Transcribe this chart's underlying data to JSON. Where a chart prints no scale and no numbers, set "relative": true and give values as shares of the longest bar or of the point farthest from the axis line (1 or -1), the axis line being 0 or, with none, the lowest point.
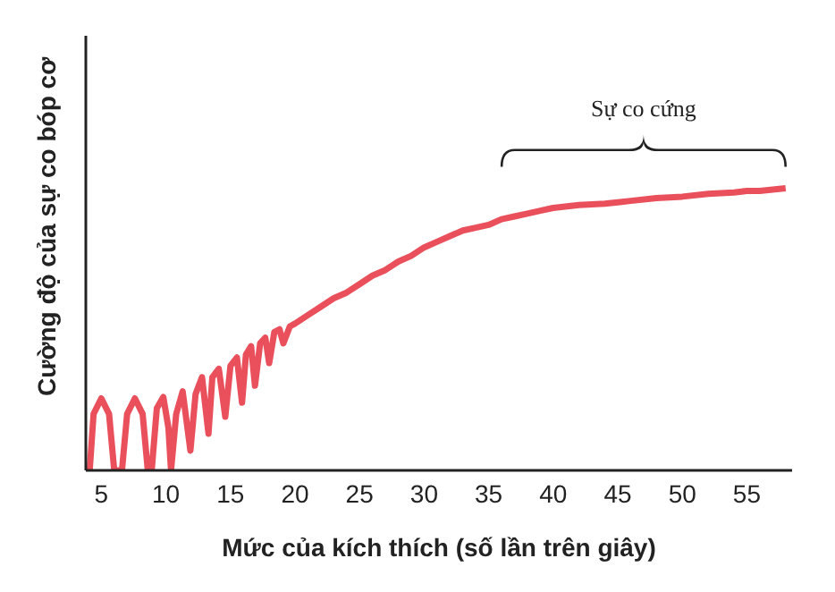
{
  "chart_data": {
    "type": "line",
    "relative": true,
    "xlabel": "Mức của kích thích (số lần trên giây)",
    "ylabel": "Cường độ của sự co bóp cơ",
    "annotations": [
      {
        "text": "Sự co cứng",
        "x": 47,
        "y": 1
      }
    ],
    "xlim": [
      3.8,
      58.5
    ],
    "xticks": [
      5,
      10,
      15,
      20,
      25,
      30,
      35,
      40,
      45,
      50,
      55
    ],
    "marker": "none",
    "line_style": "solid",
    "series": [
      {
        "color": "#e9505c",
        "x": [
          4.1,
          4.4,
          5.0,
          5.6,
          6.0,
          6.6,
          7.0,
          7.6,
          8.2,
          8.6,
          8.9,
          9.3,
          9.8,
          10.2,
          10.4,
          10.8,
          11.3,
          11.9,
          12.3,
          12.8,
          13.3,
          13.6,
          14.1,
          14.6,
          15.0,
          15.5,
          15.9,
          16.2,
          16.6,
          16.9,
          17.3,
          17.7,
          18.0,
          18.4,
          18.8,
          19.1,
          19.6,
          20,
          21,
          22,
          23,
          24,
          25,
          26,
          27,
          28,
          29,
          30,
          31,
          32,
          33,
          34,
          35,
          36,
          37,
          38,
          39,
          40,
          42,
          44,
          45,
          46,
          48,
          50,
          52,
          54,
          55,
          56,
          57,
          58
        ],
        "values": [
          0,
          0.2,
          0.255,
          0.2,
          0,
          0,
          0.2,
          0.255,
          0.2,
          0,
          0,
          0.22,
          0.26,
          0.15,
          0,
          0.2,
          0.28,
          0.07,
          0.27,
          0.33,
          0.13,
          0.33,
          0.36,
          0.19,
          0.37,
          0.4,
          0.24,
          0.41,
          0.44,
          0.3,
          0.45,
          0.47,
          0.38,
          0.49,
          0.5,
          0.45,
          0.51,
          0.52,
          0.55,
          0.58,
          0.61,
          0.63,
          0.66,
          0.69,
          0.71,
          0.74,
          0.76,
          0.79,
          0.81,
          0.83,
          0.85,
          0.86,
          0.87,
          0.89,
          0.9,
          0.91,
          0.92,
          0.93,
          0.94,
          0.945,
          0.95,
          0.955,
          0.965,
          0.97,
          0.98,
          0.985,
          0.99,
          0.99,
          0.995,
          1
        ]
      }
    ]
  }
}
